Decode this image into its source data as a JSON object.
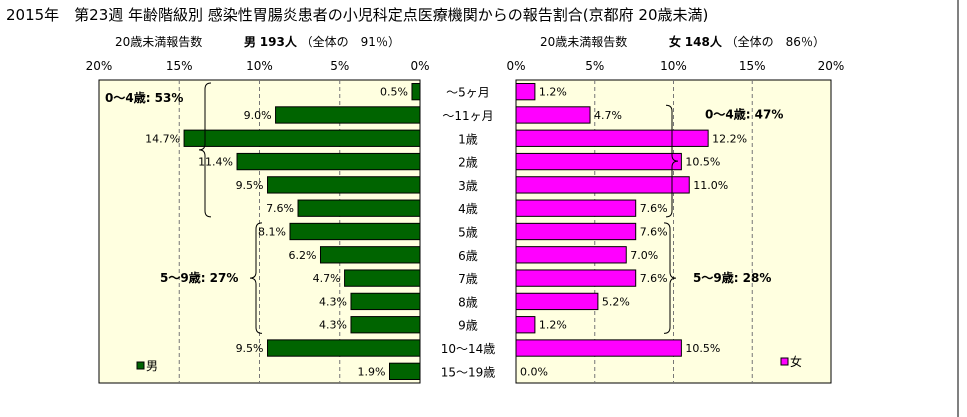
{
  "title": "2015年　第23週 年齢階級別 感染性胃腸炎患者の小児科定点医療機関からの報告割合(京都府 20歳未満)",
  "male": {
    "subtitle_label": "20歳未満報告数",
    "subtitle_sex": "男",
    "subtitle_count": "193人",
    "subtitle_share": "（全体の　91％）"
  },
  "female": {
    "subtitle_label": "20歳未満報告数",
    "subtitle_sex": "女",
    "subtitle_count": "148人",
    "subtitle_share": "（全体の　86％）"
  },
  "chart_data": [
    {
      "type": "bar",
      "orientation": "horizontal",
      "direction": "right-to-left",
      "series": [
        {
          "name": "男",
          "color": "#006400",
          "values": [
            0.5,
            9.0,
            14.7,
            11.4,
            9.5,
            7.6,
            8.1,
            6.2,
            4.7,
            4.3,
            4.3,
            9.5,
            1.9
          ]
        }
      ],
      "categories": [
        "～5ヶ月",
        "～11ヶ月",
        "1歳",
        "2歳",
        "3歳",
        "4歳",
        "5歳",
        "6歳",
        "7歳",
        "8歳",
        "9歳",
        "10～14歳",
        "15～19歳"
      ],
      "data_labels": [
        "0.5%",
        "9.0%",
        "14.7%",
        "11.4%",
        "9.5%",
        "7.6%",
        "8.1%",
        "6.2%",
        "4.7%",
        "4.3%",
        "4.3%",
        "9.5%",
        "1.9%"
      ],
      "xlim": [
        0,
        20
      ],
      "x_ticks": [
        "20%",
        "15%",
        "10%",
        "5%",
        "0%"
      ],
      "annotations": [
        "0～4歳: 53%",
        "5～9歳: 27%"
      ],
      "legend": "男",
      "legend_position": "bottom-left",
      "plot_background": "#ffffe0",
      "grid": "vertical"
    },
    {
      "type": "bar",
      "orientation": "horizontal",
      "direction": "left-to-right",
      "series": [
        {
          "name": "女",
          "color": "#ff00ff",
          "values": [
            1.2,
            4.7,
            12.2,
            10.5,
            11.0,
            7.6,
            7.6,
            7.0,
            7.6,
            5.2,
            1.2,
            10.5,
            0.0
          ]
        }
      ],
      "categories": [
        "～5ヶ月",
        "～11ヶ月",
        "1歳",
        "2歳",
        "3歳",
        "4歳",
        "5歳",
        "6歳",
        "7歳",
        "8歳",
        "9歳",
        "10～14歳",
        "15～19歳"
      ],
      "data_labels": [
        "1.2%",
        "4.7%",
        "12.2%",
        "10.5%",
        "11.0%",
        "7.6%",
        "7.6%",
        "7.0%",
        "7.6%",
        "5.2%",
        "1.2%",
        "10.5%",
        "0.0%"
      ],
      "xlim": [
        0,
        20
      ],
      "x_ticks": [
        "0%",
        "5%",
        "10%",
        "15%",
        "20%"
      ],
      "annotations": [
        "0～4歳: 47%",
        "5～9歳: 28%"
      ],
      "legend": "女",
      "legend_position": "bottom-right",
      "plot_background": "#ffffe0",
      "grid": "vertical"
    }
  ]
}
